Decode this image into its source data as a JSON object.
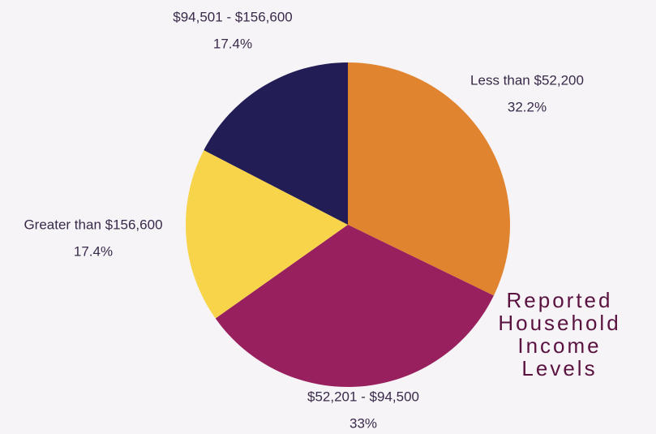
{
  "chart_data": {
    "type": "pie",
    "title": "Reported Household Income Levels",
    "categories": [
      "Less than $52,200",
      "$52,201 - $94,500",
      "Greater than $156,600",
      "$94,501 - $156,600"
    ],
    "values": [
      32.2,
      33,
      17.4,
      17.4
    ],
    "value_labels": [
      "32.2%",
      "33%",
      "17.4%",
      "17.4%"
    ],
    "colors": [
      "#e08430",
      "#98205e",
      "#f7d44a",
      "#221d55"
    ]
  }
}
